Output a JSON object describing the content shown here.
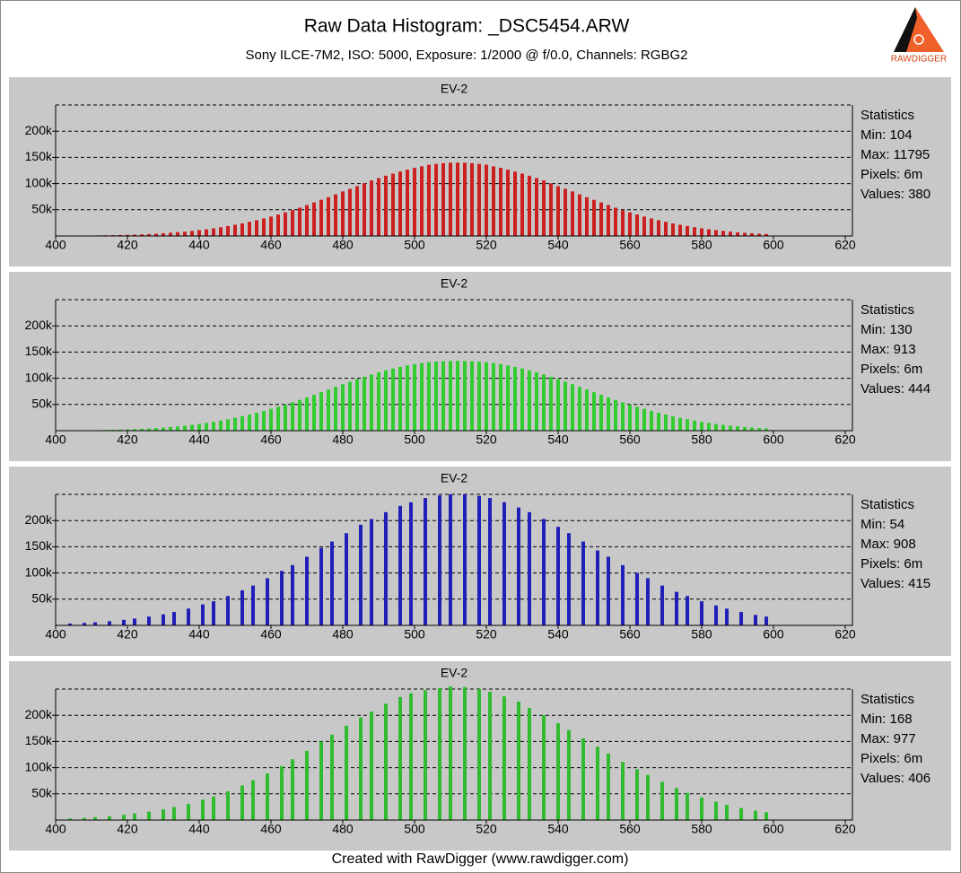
{
  "header": {
    "title": "Raw Data Histogram: _DSC5454.ARW",
    "subtitle": "Sony ILCE-7M2, ISO: 5000, Exposure: 1/2000 @ f/0.0, Channels: RGBG2",
    "logo": "RAWDIGGER"
  },
  "footer": "Created with RawDigger (www.rawdigger.com)",
  "chart_data": [
    {
      "type": "bar",
      "title": "EV-2",
      "color": "#cc2020",
      "grid": true,
      "annotations": [
        "Statistics",
        "Min: 104",
        "Max: 11795",
        "Pixels: 6m",
        "Values: 380"
      ],
      "xlim": [
        400,
        622
      ],
      "xticks": [
        400,
        420,
        440,
        460,
        480,
        500,
        520,
        540,
        560,
        580,
        600,
        620
      ],
      "ylim": [
        0,
        250000
      ],
      "yticks": [
        {
          "value": 50000,
          "label": "50k"
        },
        {
          "value": 100000,
          "label": "100k"
        },
        {
          "value": 150000,
          "label": "150k"
        },
        {
          "value": 200000,
          "label": "200k"
        }
      ],
      "x": [
        412,
        414,
        416,
        418,
        420,
        422,
        424,
        426,
        428,
        430,
        432,
        434,
        436,
        438,
        440,
        442,
        444,
        446,
        448,
        450,
        452,
        454,
        456,
        458,
        460,
        462,
        464,
        466,
        468,
        470,
        472,
        474,
        476,
        478,
        480,
        482,
        484,
        486,
        488,
        490,
        492,
        494,
        496,
        498,
        500,
        502,
        504,
        506,
        508,
        510,
        512,
        514,
        516,
        518,
        520,
        522,
        524,
        526,
        528,
        530,
        532,
        534,
        536,
        538,
        540,
        542,
        544,
        546,
        548,
        550,
        552,
        554,
        556,
        558,
        560,
        562,
        564,
        566,
        568,
        570,
        572,
        574,
        576,
        578,
        580,
        582,
        584,
        586,
        588,
        590,
        592,
        594,
        596,
        598
      ],
      "values": [
        1100,
        1300,
        1600,
        1900,
        2200,
        2700,
        3200,
        3800,
        4400,
        5200,
        6100,
        7100,
        8300,
        9700,
        11200,
        12800,
        14600,
        16700,
        19000,
        21400,
        24000,
        27000,
        30000,
        33500,
        37000,
        41000,
        45000,
        49500,
        54000,
        59000,
        64000,
        69000,
        74000,
        79500,
        85000,
        90000,
        95000,
        100500,
        106000,
        110500,
        115000,
        119000,
        123000,
        126500,
        130000,
        133000,
        136000,
        137500,
        139000,
        139800,
        140000,
        139800,
        139000,
        137500,
        136000,
        133000,
        130000,
        126500,
        123000,
        119000,
        115000,
        110500,
        106000,
        100500,
        95000,
        90000,
        85000,
        79500,
        74000,
        69000,
        64000,
        59000,
        54000,
        49500,
        45000,
        41000,
        37000,
        33500,
        30000,
        27000,
        24000,
        21400,
        19000,
        16700,
        14600,
        12800,
        11200,
        9700,
        8300,
        7100,
        6100,
        5200,
        4400,
        3800
      ]
    },
    {
      "type": "bar",
      "title": "EV-2",
      "color": "#30cc30",
      "grid": true,
      "annotations": [
        "Statistics",
        "Min: 130",
        "Max: 913",
        "Pixels: 6m",
        "Values: 444"
      ],
      "xlim": [
        400,
        622
      ],
      "xticks": [
        400,
        420,
        440,
        460,
        480,
        500,
        520,
        540,
        560,
        580,
        600,
        620
      ],
      "ylim": [
        0,
        250000
      ],
      "yticks": [
        {
          "value": 50000,
          "label": "50k"
        },
        {
          "value": 100000,
          "label": "100k"
        },
        {
          "value": 150000,
          "label": "150k"
        },
        {
          "value": 200000,
          "label": "200k"
        }
      ],
      "x": [
        412,
        414,
        416,
        418,
        420,
        422,
        424,
        426,
        428,
        430,
        432,
        434,
        436,
        438,
        440,
        442,
        444,
        446,
        448,
        450,
        452,
        454,
        456,
        458,
        460,
        462,
        464,
        466,
        468,
        470,
        472,
        474,
        476,
        478,
        480,
        482,
        484,
        486,
        488,
        490,
        492,
        494,
        496,
        498,
        500,
        502,
        504,
        506,
        508,
        510,
        512,
        514,
        516,
        518,
        520,
        522,
        524,
        526,
        528,
        530,
        532,
        534,
        536,
        538,
        540,
        542,
        544,
        546,
        548,
        550,
        552,
        554,
        556,
        558,
        560,
        562,
        564,
        566,
        568,
        570,
        572,
        574,
        576,
        578,
        580,
        582,
        584,
        586,
        588,
        590,
        592,
        594,
        596,
        598
      ],
      "values": [
        1200,
        1500,
        1800,
        2100,
        2600,
        3100,
        3700,
        4300,
        5100,
        6000,
        7000,
        8200,
        9600,
        11100,
        12800,
        14700,
        16800,
        19200,
        21800,
        24600,
        27600,
        30800,
        34200,
        37800,
        41600,
        45600,
        49800,
        54200,
        58800,
        63500,
        68400,
        73400,
        78500,
        83600,
        88600,
        93500,
        98300,
        102900,
        107300,
        111400,
        115200,
        118700,
        121800,
        124600,
        127000,
        129000,
        130600,
        131800,
        132600,
        133000,
        133200,
        133000,
        132600,
        131800,
        130600,
        129000,
        127000,
        124600,
        121800,
        118700,
        115200,
        111400,
        107300,
        102900,
        98300,
        93500,
        88600,
        83600,
        78500,
        73400,
        68400,
        63500,
        58800,
        54200,
        49800,
        45600,
        41600,
        37800,
        34200,
        30800,
        27600,
        24600,
        21800,
        19200,
        16800,
        14700,
        12800,
        11100,
        9600,
        8200,
        7000,
        6000,
        5100,
        4300
      ]
    },
    {
      "type": "bar",
      "title": "EV-2",
      "color": "#2020b8",
      "grid": true,
      "annotations": [
        "Statistics",
        "Min: 54",
        "Max: 908",
        "Pixels: 6m",
        "Values: 415"
      ],
      "xlim": [
        400,
        622
      ],
      "xticks": [
        400,
        420,
        440,
        460,
        480,
        500,
        520,
        540,
        560,
        580,
        600,
        620
      ],
      "ylim": [
        0,
        250000
      ],
      "yticks": [
        {
          "value": 50000,
          "label": "50k"
        },
        {
          "value": 100000,
          "label": "100k"
        },
        {
          "value": 150000,
          "label": "150k"
        },
        {
          "value": 200000,
          "label": "200k"
        }
      ],
      "x": [
        404,
        408,
        411,
        415,
        419,
        422,
        426,
        430,
        433,
        437,
        441,
        444,
        448,
        452,
        455,
        459,
        463,
        466,
        470,
        474,
        477,
        481,
        485,
        488,
        492,
        496,
        499,
        503,
        507,
        510,
        514,
        518,
        521,
        525,
        529,
        532,
        536,
        540,
        543,
        547,
        551,
        554,
        558,
        562,
        565,
        569,
        573,
        576,
        580,
        584,
        587,
        591,
        595,
        598
      ],
      "values": [
        3500,
        4800,
        6000,
        8000,
        10600,
        13000,
        16800,
        21000,
        25600,
        32000,
        40000,
        46000,
        56000,
        67000,
        76000,
        90000,
        104000,
        115000,
        131000,
        148000,
        160000,
        176000,
        192000,
        203000,
        216000,
        228000,
        235000,
        243000,
        248000,
        250000,
        250000,
        247000,
        243000,
        235000,
        225000,
        216000,
        203000,
        188000,
        176000,
        160000,
        143000,
        131000,
        115000,
        100000,
        90000,
        76000,
        64000,
        56000,
        46000,
        38000,
        32000,
        25600,
        20000,
        16800
      ]
    },
    {
      "type": "bar",
      "title": "EV-2",
      "color": "#30bb30",
      "grid": true,
      "annotations": [
        "Statistics",
        "Min: 168",
        "Max: 977",
        "Pixels: 6m",
        "Values: 406"
      ],
      "xlim": [
        400,
        622
      ],
      "xticks": [
        400,
        420,
        440,
        460,
        480,
        500,
        520,
        540,
        560,
        580,
        600,
        620
      ],
      "ylim": [
        0,
        250000
      ],
      "yticks": [
        {
          "value": 50000,
          "label": "50k"
        },
        {
          "value": 100000,
          "label": "100k"
        },
        {
          "value": 150000,
          "label": "150k"
        },
        {
          "value": 200000,
          "label": "200k"
        }
      ],
      "x": [
        404,
        408,
        411,
        415,
        419,
        422,
        426,
        430,
        433,
        437,
        441,
        444,
        448,
        452,
        455,
        459,
        463,
        466,
        470,
        474,
        477,
        481,
        485,
        488,
        492,
        496,
        499,
        503,
        507,
        510,
        514,
        518,
        521,
        525,
        529,
        532,
        536,
        540,
        543,
        547,
        551,
        554,
        558,
        562,
        565,
        569,
        573,
        576,
        580,
        584,
        587,
        591,
        595,
        598
      ],
      "values": [
        3000,
        4200,
        5500,
        7500,
        10000,
        12500,
        16000,
        20500,
        25000,
        31000,
        39000,
        45000,
        55000,
        66000,
        76000,
        89000,
        103000,
        116000,
        132000,
        150000,
        163000,
        180000,
        196000,
        207000,
        222000,
        235000,
        242000,
        248000,
        252000,
        255000,
        254000,
        250000,
        245000,
        236000,
        226000,
        214000,
        200000,
        185000,
        172000,
        156000,
        140000,
        127000,
        111000,
        97000,
        86000,
        73000,
        61000,
        52000,
        43000,
        35000,
        29000,
        23000,
        18000,
        15000
      ]
    }
  ]
}
